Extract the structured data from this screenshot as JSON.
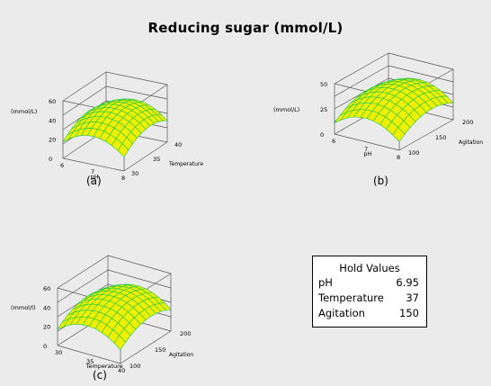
{
  "title": "Reducing sugar (mmol/L)",
  "colors": {
    "mesh": "#eef000",
    "grid": "#24c84a",
    "box": "#555555",
    "background": "#ebebeb"
  },
  "chart_data": [
    {
      "type": "surface",
      "panel_label": "(a)",
      "zlabel": "(mmol/L)",
      "xlabel": "pH",
      "ylabel": "Temperature",
      "x_ticks": [
        "6",
        "7",
        "8"
      ],
      "y_ticks": [
        "30",
        "35",
        "40"
      ],
      "z_ticks": [
        "0",
        "20",
        "40",
        "60"
      ],
      "xlim": [
        6,
        8
      ],
      "ylim": [
        30,
        40
      ],
      "zlim": [
        0,
        60
      ],
      "surface_peak": 48
    },
    {
      "type": "surface",
      "panel_label": "(b)",
      "zlabel": "(mmol/L)",
      "xlabel": "pH",
      "ylabel": "Agitation",
      "x_ticks": [
        "6",
        "7",
        "8"
      ],
      "y_ticks": [
        "100",
        "150",
        "200"
      ],
      "z_ticks": [
        "0",
        "25",
        "50"
      ],
      "xlim": [
        6,
        8
      ],
      "ylim": [
        100,
        200
      ],
      "zlim": [
        0,
        50
      ],
      "surface_peak": 42
    },
    {
      "type": "surface",
      "panel_label": "(c)",
      "zlabel": "(mmol/l)",
      "xlabel": "Temperature",
      "ylabel": "Agitation",
      "x_ticks": [
        "30",
        "35",
        "40"
      ],
      "y_ticks": [
        "100",
        "150",
        "200"
      ],
      "z_ticks": [
        "0",
        "20",
        "40",
        "60"
      ],
      "xlim": [
        30,
        40
      ],
      "ylim": [
        100,
        200
      ],
      "zlim": [
        0,
        60
      ],
      "surface_peak": 48
    }
  ],
  "hold_values": {
    "title": "Hold Values",
    "rows": [
      {
        "name": "pH",
        "value": "6.95"
      },
      {
        "name": "Temperature",
        "value": "37"
      },
      {
        "name": "Agitation",
        "value": "150"
      }
    ]
  }
}
